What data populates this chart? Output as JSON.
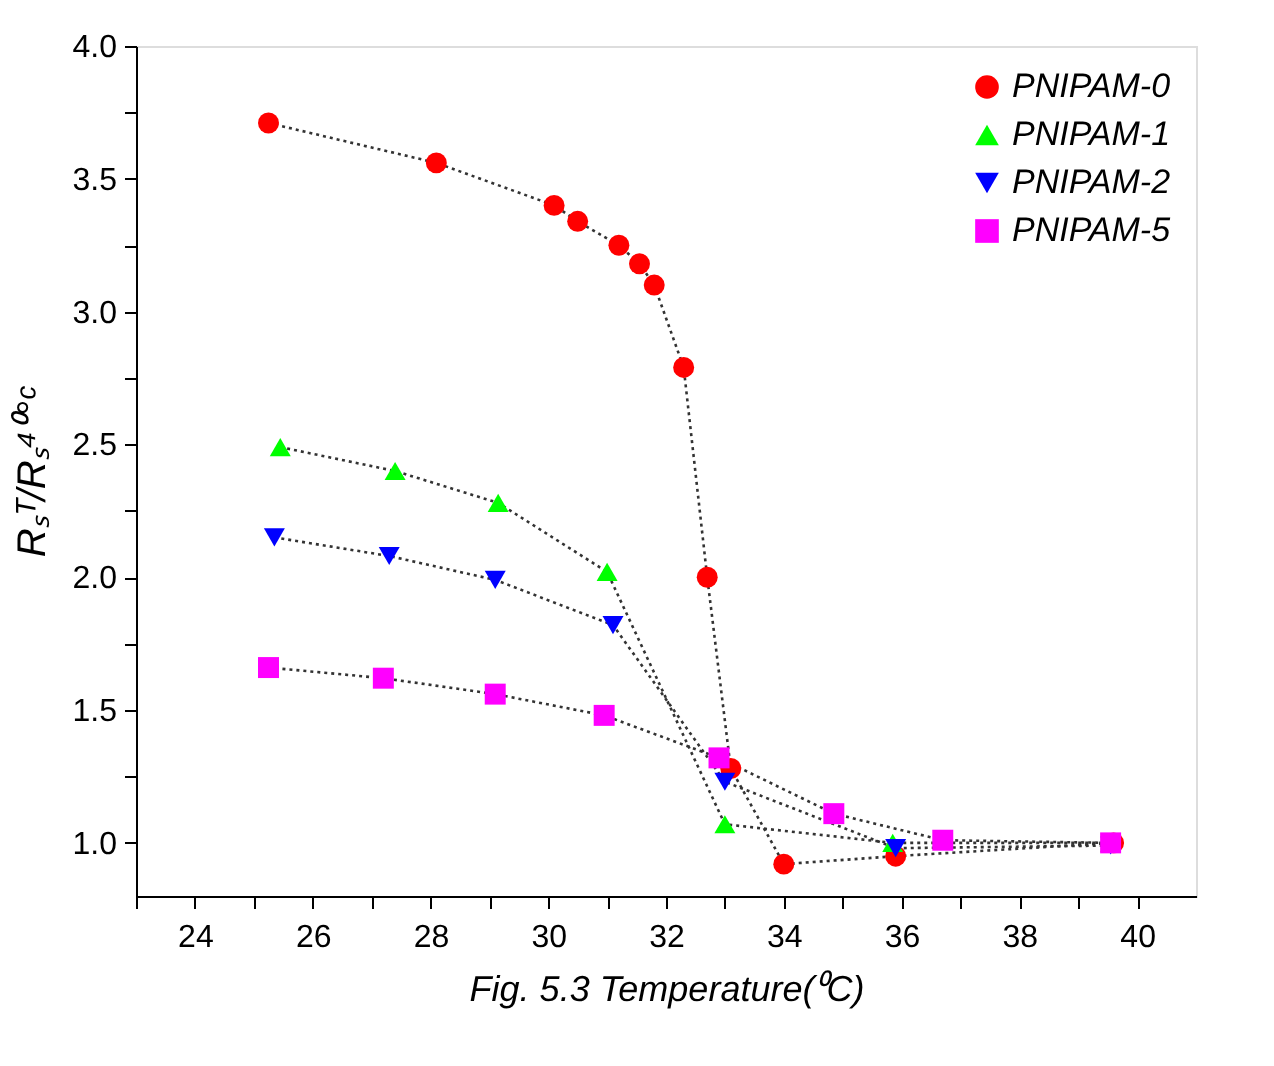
{
  "chart_data": {
    "type": "line",
    "xlabel": "Fig. 5.3 Temperature(⁰C)",
    "ylabel": "Rₛᵀ/Rₛ⁴⁰°ᶜ",
    "xlim": [
      23,
      41
    ],
    "ylim": [
      0.8,
      4.0
    ],
    "xticks": [
      {
        "value": 23,
        "label": null
      },
      24,
      {
        "value": 25,
        "label": null
      },
      26,
      {
        "value": 27,
        "label": null
      },
      28,
      {
        "value": 29,
        "label": null
      },
      30,
      {
        "value": 31,
        "label": null
      },
      32,
      {
        "value": 33,
        "label": null
      },
      34,
      {
        "value": 35,
        "label": null
      },
      36,
      {
        "value": 37,
        "label": null
      },
      38,
      {
        "value": 39,
        "label": null
      },
      40
    ],
    "yticks": [
      {
        "value": 1.0,
        "label": "1.0"
      },
      {
        "value": 1.25,
        "label": null
      },
      {
        "value": 1.5,
        "label": "1.5"
      },
      {
        "value": 1.75,
        "label": null
      },
      {
        "value": 2.0,
        "label": "2.0"
      },
      {
        "value": 2.25,
        "label": null
      },
      {
        "value": 2.5,
        "label": "2.5"
      },
      {
        "value": 2.75,
        "label": null
      },
      {
        "value": 3.0,
        "label": "3.0"
      },
      {
        "value": 3.25,
        "label": null
      },
      {
        "value": 3.5,
        "label": "3.5"
      },
      {
        "value": 3.75,
        "label": null
      },
      {
        "value": 4.0,
        "label": "4.0"
      }
    ],
    "grid": false,
    "legend": "top right",
    "line_style": "dotted",
    "series": [
      {
        "name": "PNIPAM-0",
        "color": "#ff0000",
        "marker": "circle",
        "x": [
          25.25,
          28.1,
          30.1,
          30.5,
          31.2,
          31.55,
          31.8,
          32.3,
          32.7,
          33.1,
          34.0,
          35.9,
          39.6
        ],
        "values": [
          3.71,
          3.56,
          3.4,
          3.34,
          3.25,
          3.18,
          3.1,
          2.79,
          2.0,
          1.28,
          0.92,
          0.95,
          1.0
        ]
      },
      {
        "name": "PNIPAM-1",
        "color": "#00ff00",
        "marker": "triangle",
        "x": [
          25.45,
          27.4,
          29.15,
          31.0,
          33.0,
          35.85,
          39.55
        ],
        "values": [
          2.49,
          2.4,
          2.28,
          2.02,
          1.07,
          1.0,
          1.0
        ]
      },
      {
        "name": "PNIPAM-2",
        "color": "#0000ff",
        "marker": "triangle-down",
        "x": [
          25.35,
          27.3,
          29.1,
          31.1,
          33.0,
          35.9,
          39.55
        ],
        "values": [
          2.15,
          2.08,
          1.99,
          1.82,
          1.23,
          0.98,
          0.99
        ]
      },
      {
        "name": "PNIPAM-5",
        "color": "#ff00ff",
        "marker": "square",
        "x": [
          25.25,
          27.2,
          29.1,
          30.95,
          32.9,
          34.85,
          36.7,
          39.55
        ],
        "values": [
          1.66,
          1.62,
          1.56,
          1.48,
          1.32,
          1.11,
          1.01,
          1.0
        ]
      }
    ]
  }
}
